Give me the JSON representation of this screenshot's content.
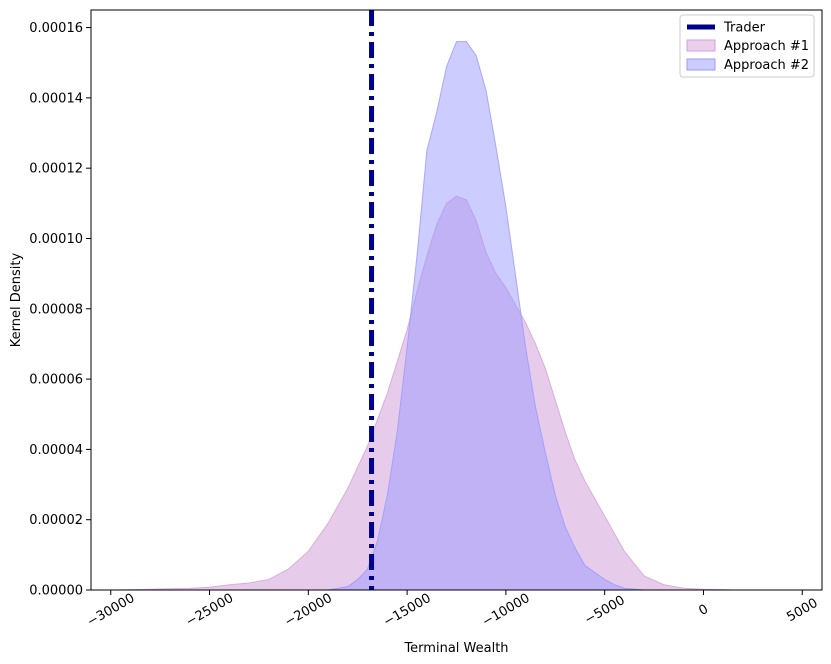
{
  "chart_data": {
    "type": "area",
    "title": "",
    "xlabel": "Terminal Wealth",
    "ylabel": "Kernel Density",
    "xlim": [
      -31000,
      6000
    ],
    "ylim": [
      0,
      0.000165
    ],
    "xticks": [
      -30000,
      -25000,
      -20000,
      -15000,
      -10000,
      -5000,
      0,
      5000
    ],
    "xtick_labels": [
      "−30000",
      "−25000",
      "−20000",
      "−15000",
      "−10000",
      "−5000",
      "0",
      "5000"
    ],
    "yticks": [
      0,
      2e-05,
      4e-05,
      6e-05,
      8e-05,
      0.0001,
      0.00012,
      0.00014,
      0.00016
    ],
    "ytick_labels": [
      "0.00000",
      "0.00002",
      "0.00004",
      "0.00006",
      "0.00008",
      "0.00010",
      "0.00012",
      "0.00014",
      "0.00016"
    ],
    "grid": false,
    "legend_position": "top-right",
    "vline": {
      "name": "Trader",
      "x": -16800,
      "color": "#00008b",
      "style": "dashdot"
    },
    "series": [
      {
        "name": "Approach #1",
        "color": "#d3a0d8",
        "x": [
          -30000,
          -28000,
          -26000,
          -25000,
          -24000,
          -23000,
          -22000,
          -21000,
          -20000,
          -19000,
          -18000,
          -17000,
          -16000,
          -15000,
          -14500,
          -14000,
          -13500,
          -13000,
          -12500,
          -12000,
          -11500,
          -11000,
          -10500,
          -10000,
          -9500,
          -9000,
          -8500,
          -8000,
          -7500,
          -7000,
          -6500,
          -6000,
          -5500,
          -5000,
          -4500,
          -4000,
          -3000,
          -2000,
          -1000,
          0,
          1000,
          1500
        ],
        "values": [
          0,
          2e-07,
          5e-07,
          8e-07,
          1.5e-06,
          2e-06,
          3e-06,
          6e-06,
          1.1e-05,
          1.9e-05,
          2.9e-05,
          4.1e-05,
          5.6e-05,
          7.4e-05,
          8.5e-05,
          9.5e-05,
          0.000104,
          0.00011,
          0.000112,
          0.000111,
          0.000105,
          9.6e-05,
          9e-05,
          8.6e-05,
          8.1e-05,
          7.6e-05,
          7e-05,
          6.3e-05,
          5.4e-05,
          4.5e-05,
          3.7e-05,
          3.1e-05,
          2.6e-05,
          2.1e-05,
          1.6e-05,
          1.1e-05,
          4e-06,
          1.5e-06,
          5e-07,
          2e-07,
          1e-07,
          0
        ]
      },
      {
        "name": "Approach #2",
        "color": "#9999ff",
        "x": [
          -19000,
          -18000,
          -17500,
          -17000,
          -16500,
          -16000,
          -15500,
          -15000,
          -14500,
          -14000,
          -13500,
          -13000,
          -12500,
          -12000,
          -11500,
          -11000,
          -10500,
          -10000,
          -9500,
          -9000,
          -8500,
          -8000,
          -7500,
          -7000,
          -6500,
          -6000,
          -5500,
          -5000,
          -4500,
          -4000,
          -3000
        ],
        "values": [
          0,
          1e-06,
          3e-06,
          6e-06,
          1.4e-05,
          2.7e-05,
          4.5e-05,
          6.9e-05,
          9.5e-05,
          0.000125,
          0.000136,
          0.000149,
          0.000156,
          0.000156,
          0.000152,
          0.000142,
          0.000126,
          0.000109,
          8.9e-05,
          6.9e-05,
          5.2e-05,
          3.9e-05,
          2.7e-05,
          1.8e-05,
          1.2e-05,
          7e-06,
          5e-06,
          3e-06,
          1.5e-06,
          5e-07,
          0
        ]
      }
    ]
  }
}
